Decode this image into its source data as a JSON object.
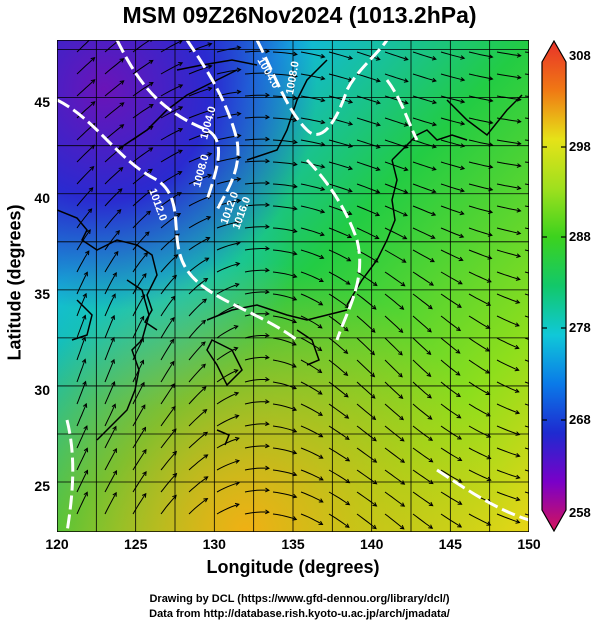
{
  "title": "MSM 09Z26Nov2024 (1013.2hPa)",
  "axes": {
    "xlabel": "Longitude (degrees)",
    "ylabel": "Latitude  (degrees)",
    "xticks": [
      "120",
      "125",
      "130",
      "135",
      "140",
      "145",
      "150"
    ],
    "yticks": [
      "25",
      "30",
      "35",
      "40",
      "45"
    ]
  },
  "colorbar": {
    "ticks": [
      "308",
      "298",
      "288",
      "278",
      "268",
      "258"
    ],
    "colors": [
      "#d4145a",
      "#7a00c8",
      "#1e2ad0",
      "#0a7ae8",
      "#10c8d8",
      "#12c86a",
      "#3cd21e",
      "#a0e01e",
      "#e6e218",
      "#f0b414",
      "#f07814",
      "#e8322a"
    ]
  },
  "contour_labels": [
    "1012.0",
    "1004.0",
    "1008.0",
    "1004.0",
    "1008.0",
    "1012.0",
    "1016.0"
  ],
  "credit": {
    "line1": "Drawing by DCL (https://www.gfd-dennou.org/library/dcl/)",
    "line2": "Data from http://database.rish.kyoto-u.ac.jp/arch/jmadata/"
  },
  "chart_data": {
    "type": "heatmap",
    "field": "temperature",
    "xlim": [
      120,
      150
    ],
    "ylim": [
      22.4,
      48
    ],
    "clim": [
      258,
      308
    ],
    "overlays": [
      "streamlines",
      "pressure contours",
      "coastlines",
      "grid"
    ]
  }
}
